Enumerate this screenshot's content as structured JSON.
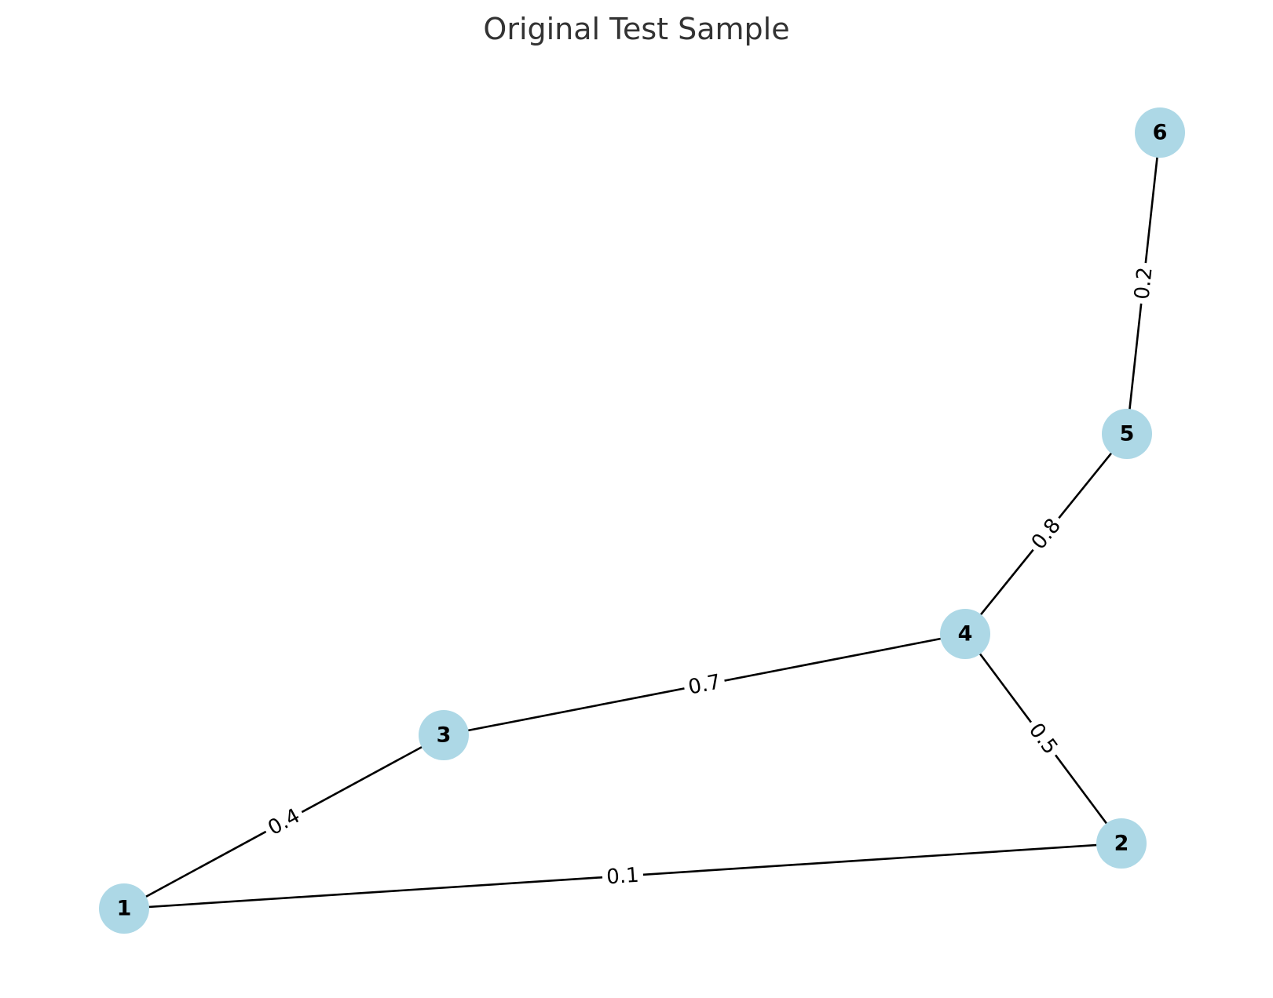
{
  "title": "Original Test Sample",
  "colors": {
    "node_fill": "#add8e6",
    "edge": "#000000",
    "title": "#333333"
  },
  "nodes": [
    {
      "id": "1",
      "label": "1"
    },
    {
      "id": "2",
      "label": "2"
    },
    {
      "id": "3",
      "label": "3"
    },
    {
      "id": "4",
      "label": "4"
    },
    {
      "id": "5",
      "label": "5"
    },
    {
      "id": "6",
      "label": "6"
    }
  ],
  "edges": [
    {
      "source": "1",
      "target": "3",
      "weight": "0.4"
    },
    {
      "source": "1",
      "target": "2",
      "weight": "0.1"
    },
    {
      "source": "3",
      "target": "4",
      "weight": "0.7"
    },
    {
      "source": "4",
      "target": "2",
      "weight": "0.5"
    },
    {
      "source": "4",
      "target": "5",
      "weight": "0.8"
    },
    {
      "source": "5",
      "target": "6",
      "weight": "0.2"
    }
  ]
}
